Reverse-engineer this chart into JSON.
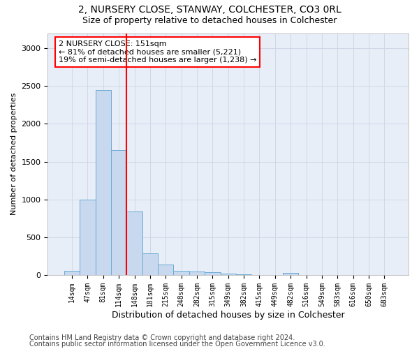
{
  "title": "2, NURSERY CLOSE, STANWAY, COLCHESTER, CO3 0RL",
  "subtitle": "Size of property relative to detached houses in Colchester",
  "xlabel": "Distribution of detached houses by size in Colchester",
  "ylabel": "Number of detached properties",
  "categories": [
    "14sqm",
    "47sqm",
    "81sqm",
    "114sqm",
    "148sqm",
    "181sqm",
    "215sqm",
    "248sqm",
    "282sqm",
    "315sqm",
    "349sqm",
    "382sqm",
    "415sqm",
    "449sqm",
    "482sqm",
    "516sqm",
    "549sqm",
    "583sqm",
    "616sqm",
    "650sqm",
    "683sqm"
  ],
  "values": [
    55,
    1000,
    2450,
    1650,
    840,
    290,
    140,
    55,
    50,
    40,
    20,
    10,
    0,
    0,
    30,
    0,
    0,
    0,
    0,
    0,
    0
  ],
  "bar_color": "#c8d8ee",
  "bar_edge_color": "#6aaad4",
  "vline_color": "red",
  "vline_position": 3.5,
  "annotation_text": "2 NURSERY CLOSE: 151sqm\n← 81% of detached houses are smaller (5,221)\n19% of semi-detached houses are larger (1,238) →",
  "annotation_box_color": "red",
  "ylim": [
    0,
    3200
  ],
  "yticks": [
    0,
    500,
    1000,
    1500,
    2000,
    2500,
    3000
  ],
  "grid_color": "#d0d8e8",
  "background_color": "#e8eef8",
  "footer1": "Contains HM Land Registry data © Crown copyright and database right 2024.",
  "footer2": "Contains public sector information licensed under the Open Government Licence v3.0.",
  "title_fontsize": 10,
  "subtitle_fontsize": 9,
  "ylabel_fontsize": 8,
  "xlabel_fontsize": 9,
  "tick_fontsize": 7,
  "ytick_fontsize": 8,
  "footer_fontsize": 7,
  "annot_fontsize": 8
}
